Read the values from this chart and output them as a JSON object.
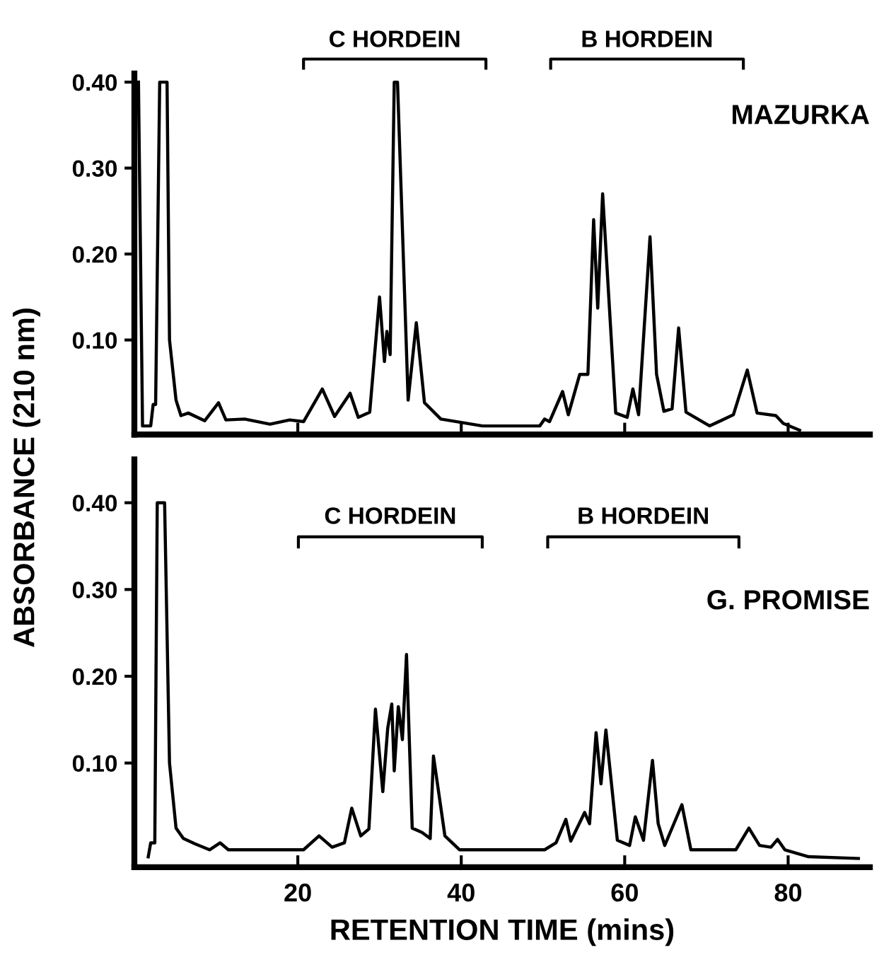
{
  "chart_data": [
    {
      "type": "line",
      "ylabel": "ABSORBANCE (210 nm)",
      "annotations": [
        "C HORDEIN",
        "B HORDEIN",
        "MAZURKA"
      ],
      "series": [
        {
          "color": "#000000",
          "x": [
            0.5,
            1.0,
            2.0,
            2.3,
            2.6,
            3.1,
            4.0,
            4.3,
            5.1,
            5.7,
            6.6,
            8.6,
            10.3,
            11.2,
            13.5,
            16.6,
            19.0,
            20.7,
            23.0,
            24.5,
            26.4,
            27.4,
            28.8,
            30.0,
            30.6,
            30.9,
            31.3,
            31.8,
            32.2,
            33.5,
            34.5,
            35.5,
            37.5,
            42.6,
            49.6,
            50.2,
            50.8,
            52.4,
            53.1,
            54.5,
            55.5,
            56.2,
            56.7,
            57.3,
            58.9,
            60.3,
            61.0,
            61.7,
            63.1,
            63.9,
            64.8,
            65.8,
            66.6,
            67.5,
            70.4,
            73.3,
            75.0,
            76.2,
            78.5,
            79.4,
            81.4
          ],
          "values": [
            0.4,
            0.0,
            0.0,
            0.025,
            0.025,
            0.4,
            0.4,
            0.1,
            0.03,
            0.012,
            0.015,
            0.006,
            0.027,
            0.007,
            0.008,
            0.002,
            0.007,
            0.005,
            0.043,
            0.011,
            0.038,
            0.01,
            0.016,
            0.15,
            0.075,
            0.11,
            0.083,
            0.4,
            0.4,
            0.03,
            0.12,
            0.027,
            0.008,
            0.0,
            0.0,
            0.008,
            0.005,
            0.04,
            0.013,
            0.06,
            0.06,
            0.24,
            0.137,
            0.27,
            0.015,
            0.01,
            0.043,
            0.013,
            0.22,
            0.06,
            0.017,
            0.02,
            0.114,
            0.016,
            0.0,
            0.013,
            0.065,
            0.015,
            0.012,
            0.003,
            -0.005
          ]
        }
      ],
      "xlim": [
        0,
        90
      ],
      "xticks": [
        {
          "value": 20,
          "label": null
        },
        {
          "value": 40,
          "label": null
        },
        {
          "value": 60,
          "label": null
        },
        {
          "value": 80,
          "label": null
        }
      ],
      "ylim": [
        -0.01,
        0.41
      ],
      "yticks": [
        {
          "value": 0.1,
          "label": "0.10"
        },
        {
          "value": 0.2,
          "label": "0.20"
        },
        {
          "value": 0.3,
          "label": "0.30"
        },
        {
          "value": 0.4,
          "label": "0.40"
        }
      ],
      "tick_labels": "y",
      "grid": false,
      "legend": false
    },
    {
      "type": "line",
      "xlabel": "RETENTION TIME (mins)",
      "annotations": [
        "C HORDEIN",
        "B HORDEIN",
        "G. PROMISE"
      ],
      "series": [
        {
          "color": "#000000",
          "x": [
            1.7,
            2.0,
            2.5,
            2.8,
            3.7,
            4.3,
            5.1,
            6.0,
            7.4,
            9.2,
            10.5,
            11.5,
            20.7,
            22.6,
            24.2,
            25.7,
            26.6,
            27.7,
            28.7,
            29.5,
            30.4,
            31.0,
            31.5,
            31.8,
            32.3,
            32.8,
            33.3,
            34.0,
            35.2,
            36.2,
            36.6,
            38.0,
            39.8,
            45.6,
            50.2,
            51.6,
            52.8,
            53.4,
            55.1,
            55.7,
            56.5,
            57.1,
            57.7,
            59.1,
            60.6,
            61.3,
            62.3,
            63.4,
            64.1,
            64.9,
            67.0,
            68.1,
            73.6,
            75.2,
            76.5,
            77.9,
            78.7,
            79.6,
            82.5,
            88.6
          ],
          "values": [
            -0.008,
            0.008,
            0.008,
            0.4,
            0.4,
            0.1,
            0.025,
            0.013,
            0.007,
            0.0,
            0.008,
            0.0,
            0.0,
            0.016,
            0.003,
            0.008,
            0.048,
            0.016,
            0.024,
            0.162,
            0.067,
            0.14,
            0.168,
            0.091,
            0.165,
            0.127,
            0.225,
            0.025,
            0.02,
            0.013,
            0.108,
            0.016,
            0.0,
            0.0,
            0.0,
            0.008,
            0.035,
            0.01,
            0.043,
            0.03,
            0.135,
            0.076,
            0.138,
            0.011,
            0.005,
            0.038,
            0.011,
            0.103,
            0.03,
            0.005,
            0.052,
            0.0,
            0.0,
            0.025,
            0.005,
            0.003,
            0.012,
            0.0,
            -0.008,
            -0.01
          ]
        }
      ],
      "xlim": [
        0,
        90
      ],
      "xticks": [
        20,
        40,
        60,
        80
      ],
      "ylim": [
        -0.02,
        0.45
      ],
      "yticks": [
        {
          "value": 0.1,
          "label": "0.10"
        },
        {
          "value": 0.2,
          "label": "0.20"
        },
        {
          "value": 0.3,
          "label": "0.30"
        },
        {
          "value": 0.4,
          "label": "0.40"
        }
      ],
      "grid": false,
      "legend": false
    }
  ]
}
